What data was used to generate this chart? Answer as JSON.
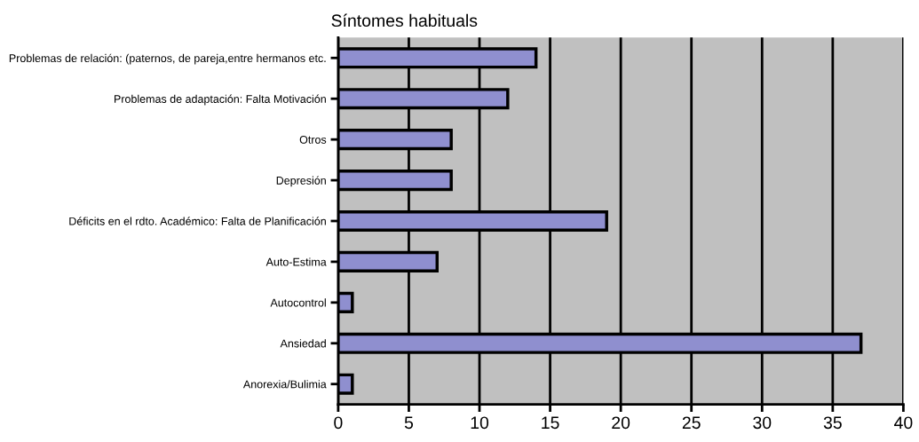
{
  "chart_data": {
    "type": "bar",
    "orientation": "horizontal",
    "title": "Síntomes habituals",
    "categories": [
      "Problemas de relación: (paternos, de pareja,entre hermanos etc.",
      "Problemas de adaptación: Falta Motivación",
      "Otros",
      "Depresión",
      "Déficits en el rdto. Académico: Falta de Planificación",
      "Auto-Estima",
      "Autocontrol",
      "Ansiedad",
      "Anorexia/Bulimia"
    ],
    "values": [
      14,
      12,
      8,
      8,
      19,
      7,
      1,
      37,
      1
    ],
    "color": "#8f8fcf",
    "xlim": [
      0,
      40
    ],
    "xticks": [
      0,
      5,
      10,
      15,
      20,
      25,
      30,
      35,
      40
    ],
    "grid": "x"
  }
}
